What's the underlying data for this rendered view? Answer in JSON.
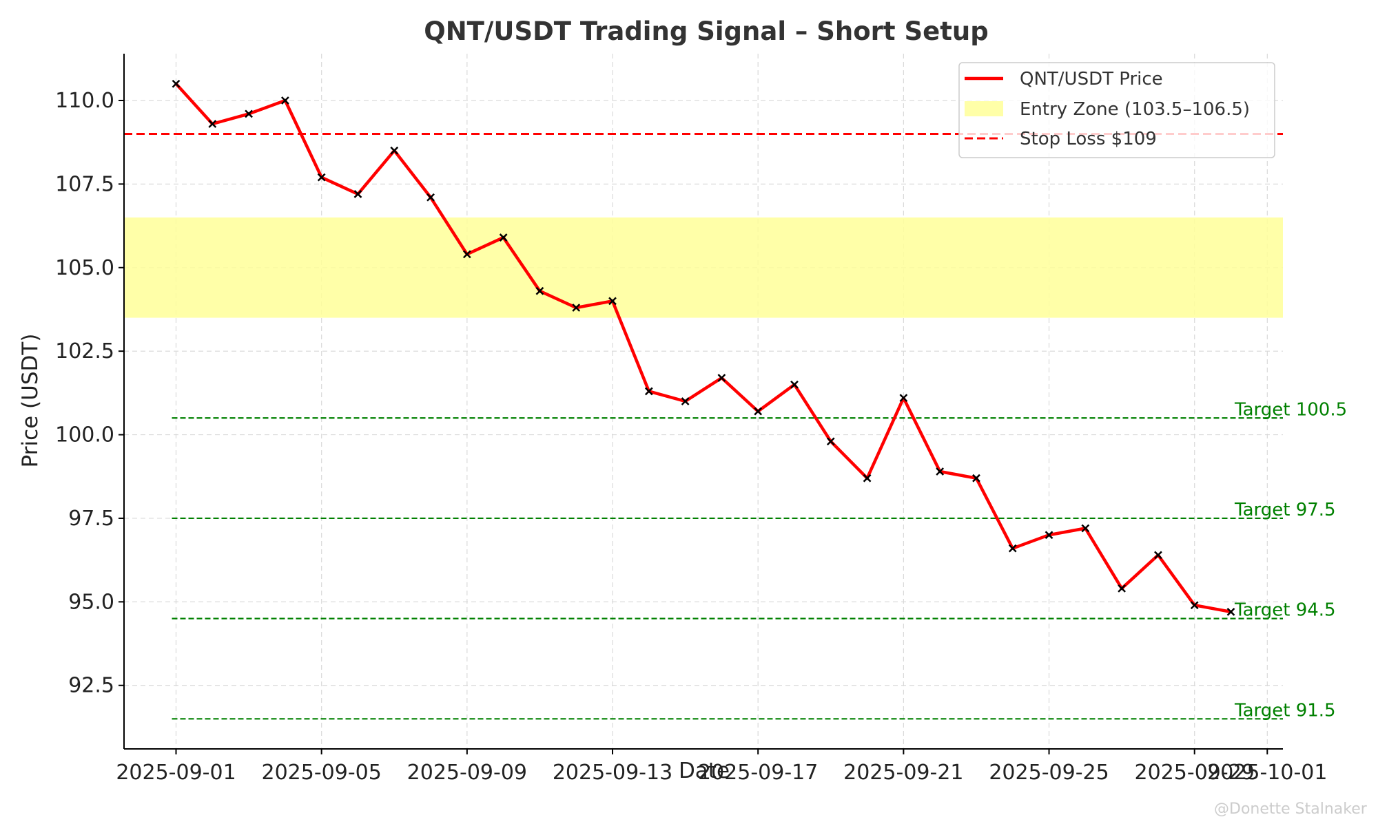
{
  "chart_data": {
    "type": "line",
    "title": "QNT/USDT Trading Signal – Short Setup",
    "xlabel": "Date",
    "ylabel": "Price (USDT)",
    "ylim": [
      90.6,
      111.4
    ],
    "xlim": [
      "2025-08-30.57",
      "2025-10-01.43"
    ],
    "x_ticks": [
      "2025-09-01",
      "2025-09-05",
      "2025-09-09",
      "2025-09-13",
      "2025-09-17",
      "2025-09-21",
      "2025-09-25",
      "2025-09-29",
      "2025-10-01"
    ],
    "y_ticks": [
      92.5,
      95.0,
      97.5,
      100.0,
      102.5,
      105.0,
      107.5,
      110.0
    ],
    "y_tick_labels": [
      "92.5",
      "95.0",
      "97.5",
      "100.0",
      "102.5",
      "105.0",
      "107.5",
      "110.0"
    ],
    "grid": true,
    "legend_position": "top-right",
    "series": [
      {
        "name": "QNT/USDT Price",
        "color": "#ff0000",
        "marker": "x",
        "x": [
          "2025-09-01",
          "2025-09-02",
          "2025-09-03",
          "2025-09-04",
          "2025-09-05",
          "2025-09-06",
          "2025-09-07",
          "2025-09-08",
          "2025-09-09",
          "2025-09-10",
          "2025-09-11",
          "2025-09-12",
          "2025-09-13",
          "2025-09-14",
          "2025-09-15",
          "2025-09-16",
          "2025-09-17",
          "2025-09-18",
          "2025-09-19",
          "2025-09-20",
          "2025-09-21",
          "2025-09-22",
          "2025-09-23",
          "2025-09-24",
          "2025-09-25",
          "2025-09-26",
          "2025-09-27",
          "2025-09-28",
          "2025-09-29",
          "2025-09-30"
        ],
        "values": [
          110.5,
          109.3,
          109.6,
          110.0,
          107.7,
          107.2,
          108.5,
          107.1,
          105.4,
          105.9,
          104.3,
          103.8,
          104.0,
          101.3,
          101.0,
          101.7,
          100.7,
          101.5,
          99.8,
          98.7,
          101.1,
          98.9,
          98.7,
          96.6,
          97.0,
          97.2,
          95.4,
          96.4,
          94.9,
          94.7
        ]
      }
    ],
    "entry_zone": {
      "label": "Entry Zone (103.5–106.5)",
      "low": 103.5,
      "high": 106.5,
      "color": "#ffff99"
    },
    "stop_loss": {
      "label": "Stop Loss $109",
      "value": 109,
      "color": "#ff0000"
    },
    "targets": [
      {
        "label": "Target 100.5",
        "value": 100.5
      },
      {
        "label": "Target 97.5",
        "value": 97.5
      },
      {
        "label": "Target 94.5",
        "value": 94.5
      },
      {
        "label": "Target 91.5",
        "value": 91.5
      }
    ],
    "target_color": "#008000"
  },
  "watermark": "@Donette Stalnaker"
}
